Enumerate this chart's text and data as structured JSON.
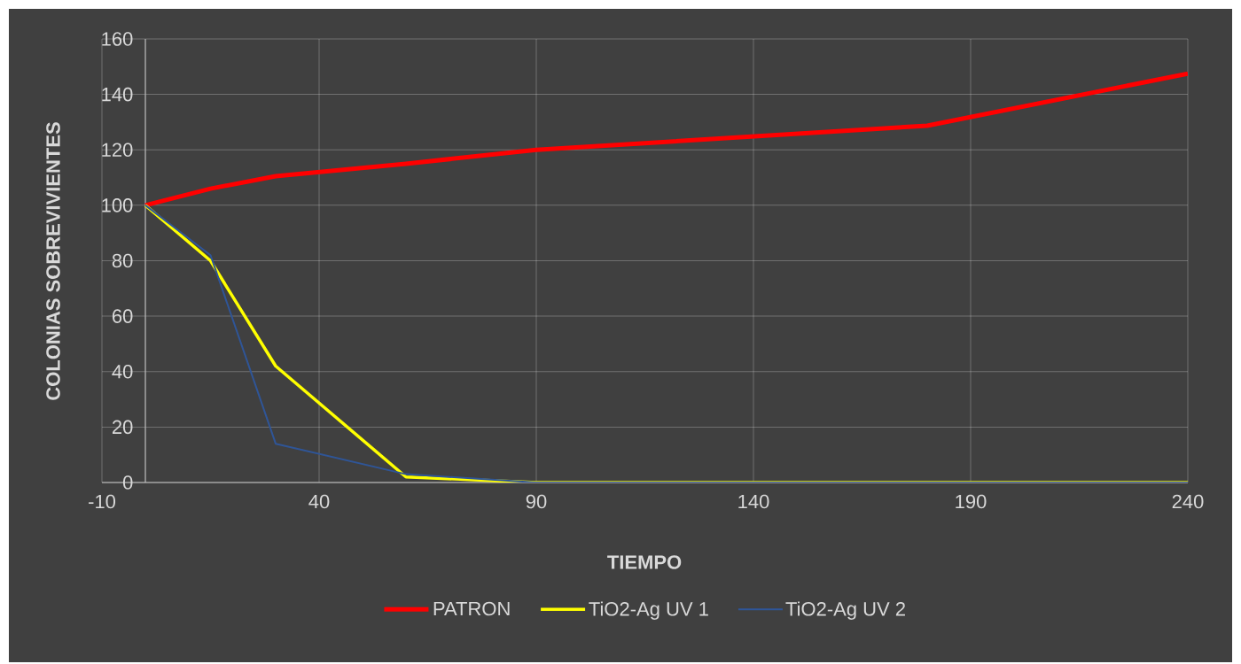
{
  "chart_data": {
    "type": "line",
    "xlabel": "TIEMPO",
    "ylabel": "COLONIAS SOBREVIVIENTES",
    "x": [
      0,
      15,
      30,
      60,
      90,
      180,
      240
    ],
    "series": [
      {
        "name": "PATRON",
        "color": "#ff0000",
        "values": [
          100,
          106,
          110.5,
          115,
          120,
          128.7,
          147.5
        ]
      },
      {
        "name": "TiO2-Ag UV 1",
        "color": "#ffff00",
        "values": [
          100,
          80,
          42,
          2,
          0,
          0,
          0
        ]
      },
      {
        "name": "TiO2-Ag UV 2",
        "color": "#2f5597",
        "values": [
          100,
          82,
          14,
          3,
          0,
          0,
          0
        ]
      }
    ],
    "xlim": [
      -10,
      240
    ],
    "xticks": [
      -10,
      40,
      90,
      140,
      190,
      240
    ],
    "ylim": [
      0,
      160
    ],
    "yticks": [
      0,
      20,
      40,
      60,
      80,
      100,
      120,
      140,
      160
    ],
    "grid": true,
    "legend": "bottom",
    "marker": "none",
    "line_style": "solid"
  }
}
